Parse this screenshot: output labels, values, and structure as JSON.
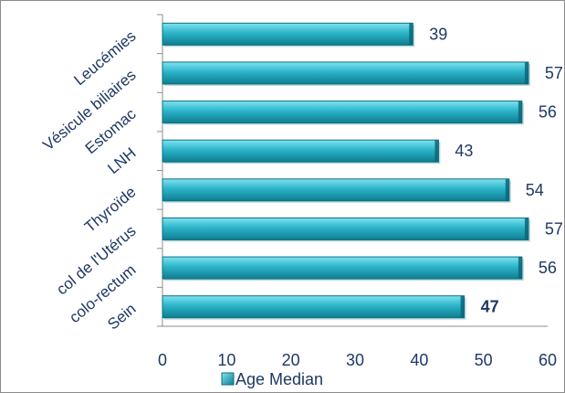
{
  "chart_data": {
    "type": "bar",
    "orientation": "horizontal",
    "categories": [
      "Leucémies",
      "Vésicule biliaires",
      "Estomac",
      "LNH",
      "Thyroïde",
      "col de l'Utérus",
      "colo-rectum",
      "Sein"
    ],
    "series": [
      {
        "name": "Age Median",
        "values": [
          39,
          57,
          56,
          43,
          54,
          57,
          56,
          47
        ]
      }
    ],
    "value_labels": [
      "39",
      "57",
      "56",
      "43",
      "54",
      "57",
      "56",
      "47"
    ],
    "bold_value_index": 7,
    "x_ticks": [
      "0",
      "10",
      "20",
      "30",
      "40",
      "50",
      "60"
    ],
    "xlim": [
      0,
      60
    ],
    "grid": false,
    "legend": {
      "position": "bottom",
      "label": "Age Median"
    },
    "bar_color": "#2bb4c9",
    "bar_edge_color": "#0d6f80",
    "text_color": "#1f3864"
  }
}
